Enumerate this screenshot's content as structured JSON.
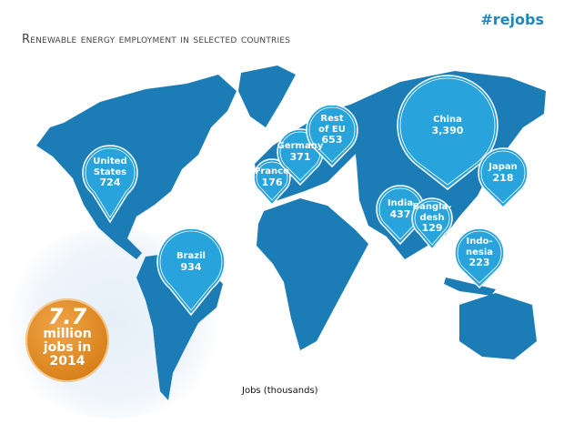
{
  "header": {
    "hashtag": "#rejobs",
    "title": "Renewable energy employment in selected countries"
  },
  "colors": {
    "land": "#1b7cb6",
    "pin": "#29a3dc",
    "badge": "#dd8620",
    "hashtag": "#1f86bf"
  },
  "countries": [
    {
      "name": "United States",
      "name_l1": "United",
      "name_l2": "States",
      "jobs_thousands": "724"
    },
    {
      "name": "Brazil",
      "name_l1": "Brazil",
      "name_l2": "",
      "jobs_thousands": "934"
    },
    {
      "name": "France",
      "name_l1": "France",
      "name_l2": "",
      "jobs_thousands": "176"
    },
    {
      "name": "Germany",
      "name_l1": "Germany",
      "name_l2": "",
      "jobs_thousands": "371"
    },
    {
      "name": "Rest of EU",
      "name_l1": "Rest",
      "name_l2": "of EU",
      "jobs_thousands": "653"
    },
    {
      "name": "China",
      "name_l1": "China",
      "name_l2": "",
      "jobs_thousands": "3,390"
    },
    {
      "name": "India",
      "name_l1": "India",
      "name_l2": "",
      "jobs_thousands": "437"
    },
    {
      "name": "Bangladesh",
      "name_l1": "Bangla-",
      "name_l2": "desh",
      "jobs_thousands": "129"
    },
    {
      "name": "Japan",
      "name_l1": "Japan",
      "name_l2": "",
      "jobs_thousands": "218"
    },
    {
      "name": "Indonesia",
      "name_l1": "Indo-",
      "name_l2": "nesia",
      "jobs_thousands": "223"
    }
  ],
  "total": {
    "value": "7.7",
    "line1": "million",
    "line2": "jobs in",
    "line3": "2014"
  },
  "legend": "Jobs (thousands)"
}
